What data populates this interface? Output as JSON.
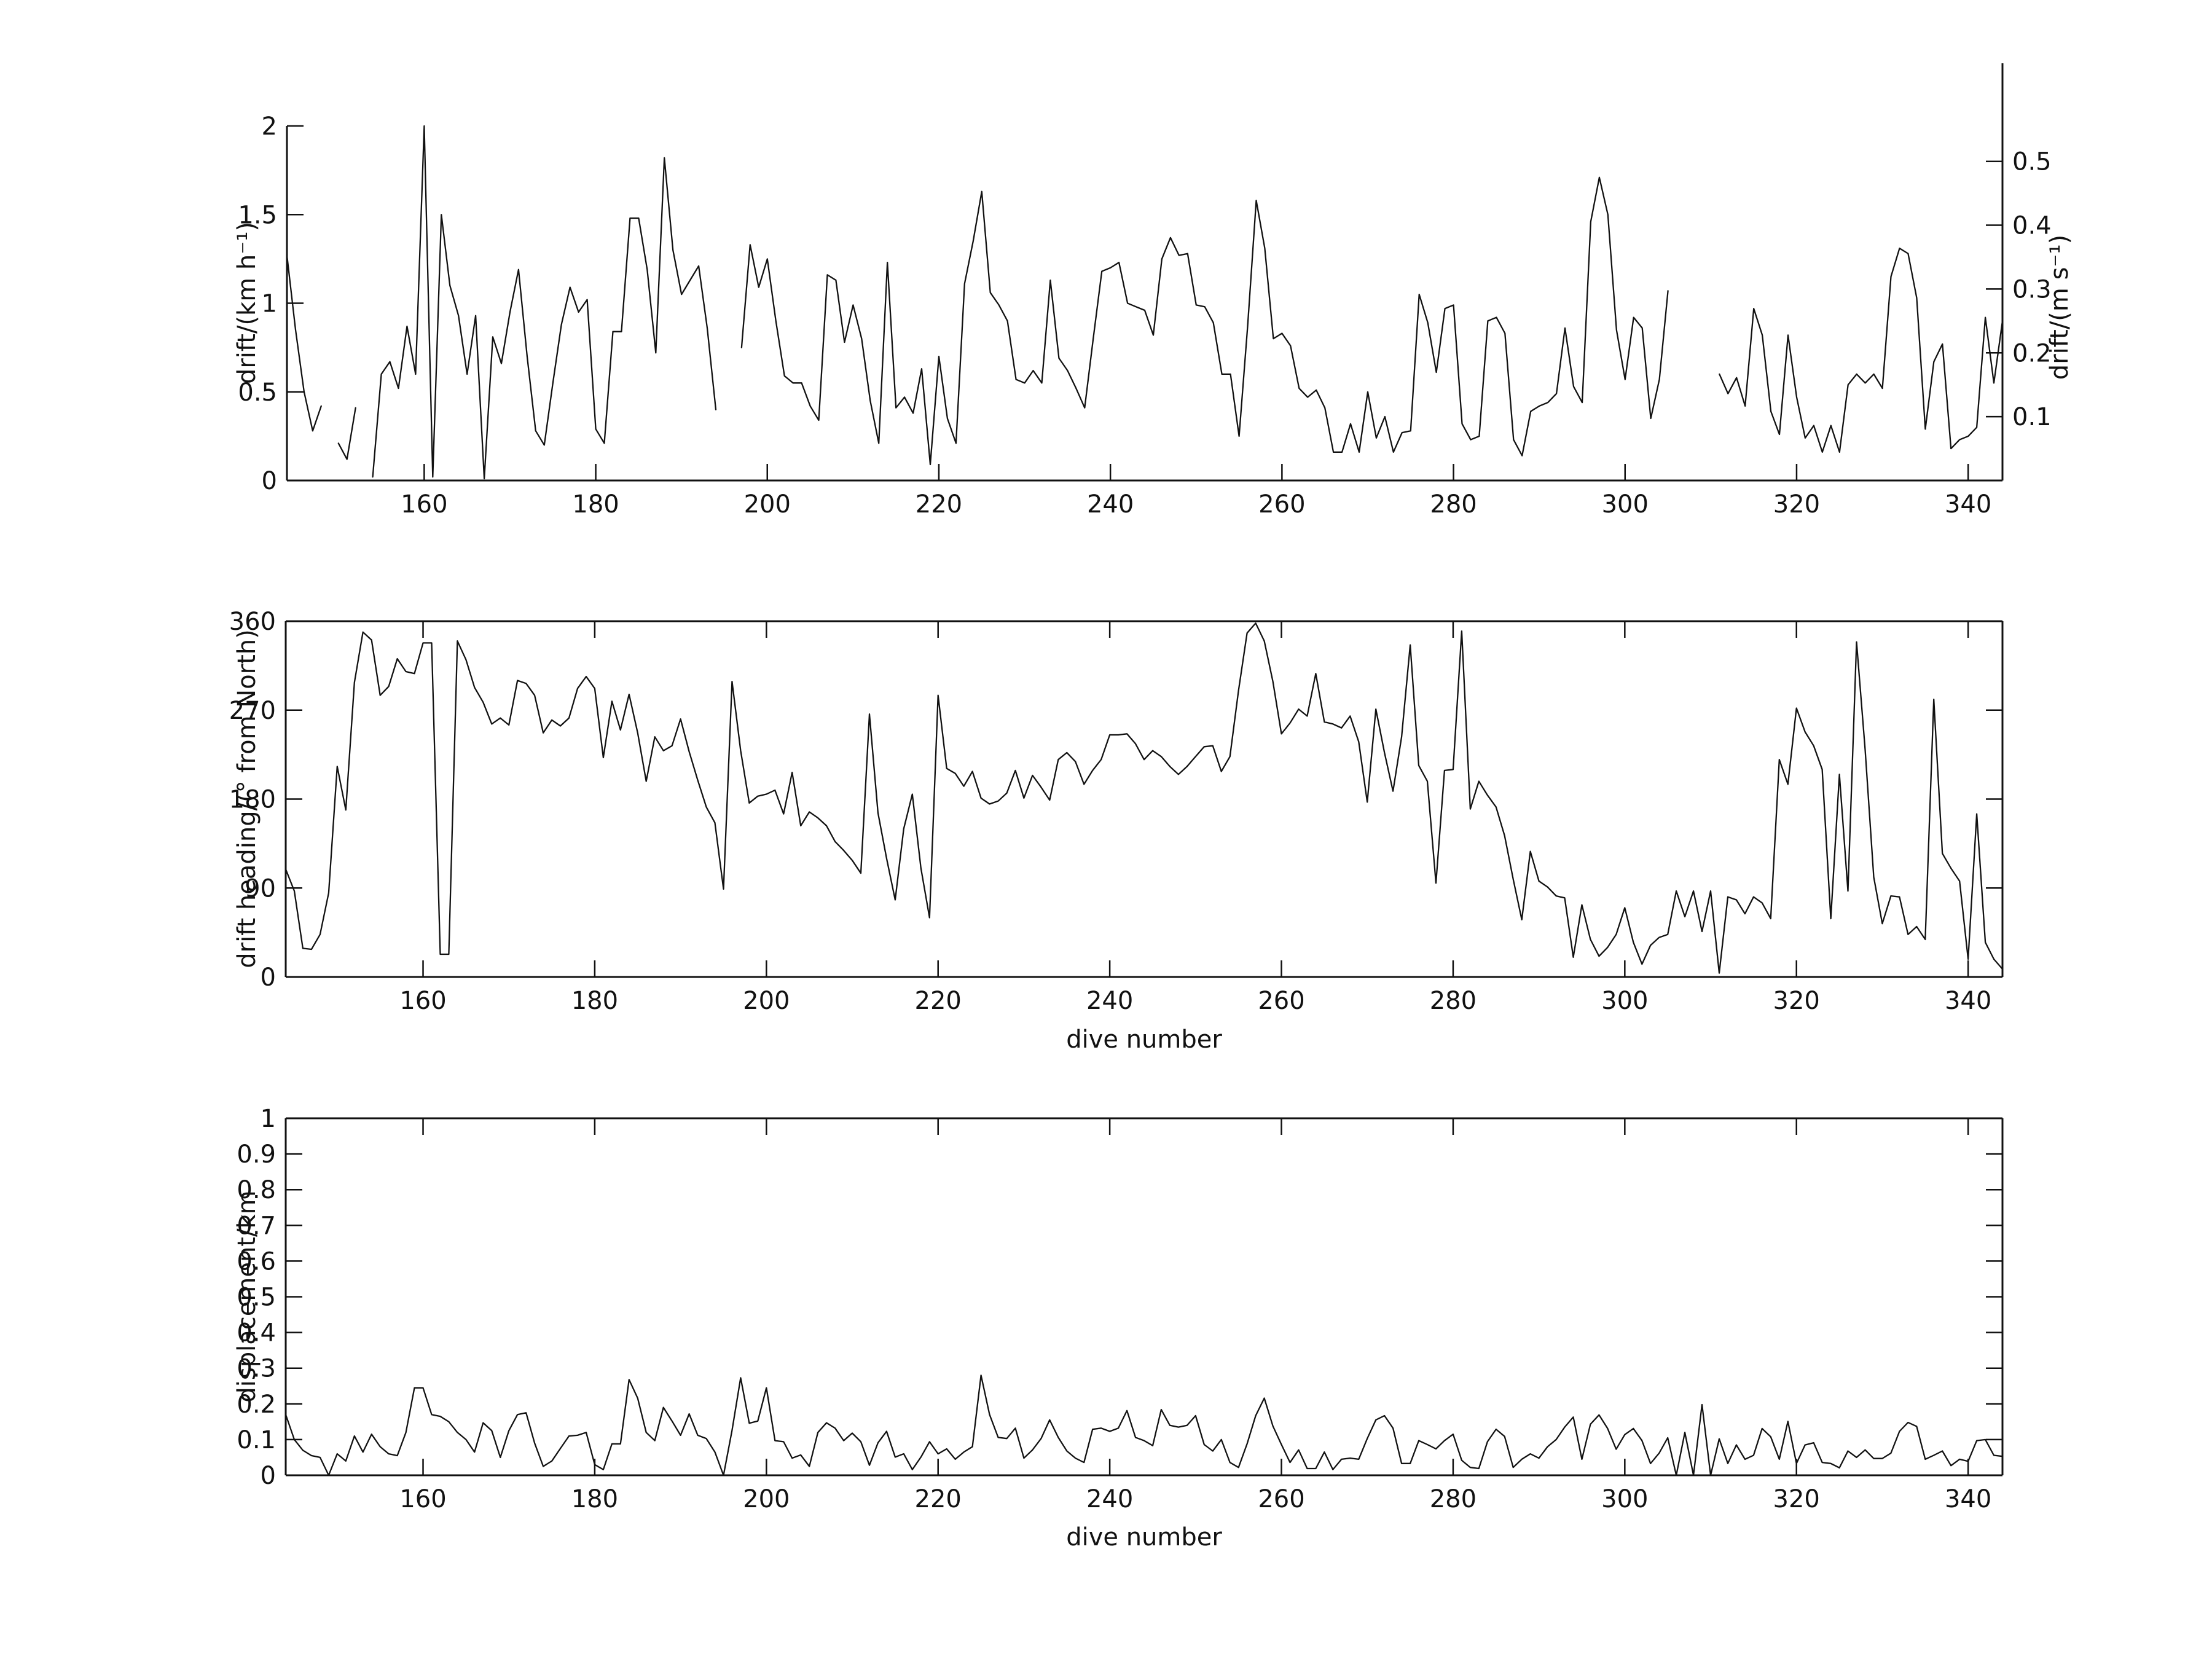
{
  "figure": {
    "background": "#ffffff",
    "line_color": "#111111",
    "text_color": "#111111"
  },
  "dive_numbers": [
    144,
    145,
    146,
    147,
    148,
    149,
    150,
    151,
    152,
    153,
    154,
    155,
    156,
    157,
    158,
    159,
    160,
    161,
    162,
    163,
    164,
    165,
    166,
    167,
    168,
    169,
    170,
    171,
    172,
    173,
    174,
    175,
    176,
    177,
    178,
    179,
    180,
    181,
    182,
    183,
    184,
    185,
    186,
    187,
    188,
    189,
    190,
    191,
    192,
    193,
    194,
    195,
    196,
    197,
    198,
    199,
    200,
    201,
    202,
    203,
    204,
    205,
    206,
    207,
    208,
    209,
    210,
    211,
    212,
    213,
    214,
    215,
    216,
    217,
    218,
    219,
    220,
    221,
    222,
    223,
    224,
    225,
    226,
    227,
    228,
    229,
    230,
    231,
    232,
    233,
    234,
    235,
    236,
    237,
    238,
    239,
    240,
    241,
    242,
    243,
    244,
    245,
    246,
    247,
    248,
    249,
    250,
    251,
    252,
    253,
    254,
    255,
    256,
    257,
    258,
    259,
    260,
    261,
    262,
    263,
    264,
    265,
    266,
    267,
    268,
    269,
    270,
    271,
    272,
    273,
    274,
    275,
    276,
    277,
    278,
    279,
    280,
    281,
    282,
    283,
    284,
    285,
    286,
    287,
    288,
    289,
    290,
    291,
    292,
    293,
    294,
    295,
    296,
    297,
    298,
    299,
    300,
    301,
    302,
    303,
    304,
    305,
    306,
    307,
    308,
    309,
    310,
    311,
    312,
    313,
    314,
    315,
    316,
    317,
    318,
    319,
    320,
    321,
    322,
    323,
    324,
    325,
    326,
    327,
    328,
    329,
    330,
    331,
    332,
    333,
    334,
    335,
    336,
    337,
    338,
    339,
    340,
    341,
    342,
    343,
    344
  ],
  "chart_data": [
    {
      "id": "drift",
      "type": "line",
      "title": "",
      "xlabel": "",
      "ylabel_left": "drift/(km h⁻¹)",
      "ylabel_right": "drift/(m s⁻¹)",
      "xlim": [
        144,
        344
      ],
      "ylim": [
        0,
        2
      ],
      "xticks": [
        160,
        180,
        200,
        220,
        240,
        260,
        280,
        300,
        320,
        340
      ],
      "xtick_labels": [
        "160",
        "180",
        "200",
        "220",
        "240",
        "260",
        "280",
        "300",
        "320",
        "340"
      ],
      "yticks": [
        0,
        0.5,
        1,
        1.5,
        2
      ],
      "ytick_labels": [
        "0",
        "0.5",
        "1",
        "1.5",
        "2"
      ],
      "yticks_right_ms": [
        0.1,
        0.2,
        0.3,
        0.4,
        0.5
      ],
      "ytick_labels_right": [
        "0.1",
        "0.2",
        "0.3",
        "0.4",
        "0.5"
      ],
      "grid": false,
      "legend": null,
      "values": [
        1.27,
        0.85,
        0.5,
        0.28,
        0.42,
        null,
        0.21,
        0.12,
        0.41,
        null,
        0.02,
        0.6,
        0.67,
        0.52,
        0.87,
        0.6,
        2.0,
        0.02,
        1.5,
        1.1,
        0.93,
        0.6,
        0.93,
        0.01,
        0.81,
        0.66,
        0.95,
        1.19,
        0.7,
        0.28,
        0.2,
        0.55,
        0.88,
        1.09,
        0.95,
        1.02,
        0.29,
        0.21,
        0.84,
        0.84,
        1.48,
        1.48,
        1.19,
        0.72,
        1.82,
        1.3,
        1.05,
        1.13,
        1.21,
        0.86,
        0.4,
        null,
        null,
        0.75,
        1.33,
        1.09,
        1.25,
        0.9,
        0.59,
        0.55,
        0.55,
        0.42,
        0.34,
        1.16,
        1.13,
        0.78,
        0.99,
        0.8,
        0.45,
        0.21,
        1.23,
        0.41,
        0.47,
        0.38,
        0.63,
        0.09,
        0.7,
        0.35,
        0.21,
        1.11,
        1.35,
        1.63,
        1.06,
        0.99,
        0.9,
        0.57,
        0.55,
        0.62,
        0.55,
        1.13,
        0.69,
        0.62,
        0.52,
        0.41,
        0.8,
        1.18,
        1.2,
        1.23,
        1.0,
        0.98,
        0.96,
        0.82,
        1.25,
        1.37,
        1.27,
        1.28,
        0.99,
        0.98,
        0.89,
        0.6,
        0.6,
        0.25,
        0.87,
        1.58,
        1.31,
        0.8,
        0.83,
        0.76,
        0.52,
        0.47,
        0.51,
        0.41,
        0.16,
        0.16,
        0.32,
        0.16,
        0.5,
        0.24,
        0.36,
        0.16,
        0.27,
        0.28,
        1.05,
        0.89,
        0.61,
        0.97,
        0.99,
        0.32,
        0.23,
        0.25,
        0.9,
        0.92,
        0.83,
        0.23,
        0.14,
        0.39,
        0.42,
        0.44,
        0.49,
        0.86,
        0.53,
        0.44,
        1.46,
        1.71,
        1.5,
        0.85,
        0.57,
        0.92,
        0.86,
        0.35,
        0.57,
        1.07,
        null,
        null,
        null,
        null,
        null,
        0.6,
        0.49,
        0.58,
        0.42,
        0.97,
        0.82,
        0.39,
        0.26,
        0.82,
        0.47,
        0.24,
        0.31,
        0.16,
        0.31,
        0.16,
        0.54,
        0.6,
        0.55,
        0.6,
        0.52,
        1.15,
        1.31,
        1.28,
        1.03,
        0.29,
        0.67,
        0.77,
        0.18,
        0.23,
        0.25,
        0.3,
        0.92,
        0.55,
        0.9
      ]
    },
    {
      "id": "heading",
      "type": "line",
      "title": "",
      "xlabel": "dive number",
      "ylabel": "drift heading/(° from North)",
      "xlim": [
        144,
        344
      ],
      "ylim": [
        0,
        360
      ],
      "xticks": [
        160,
        180,
        200,
        220,
        240,
        260,
        280,
        300,
        320,
        340
      ],
      "xtick_labels": [
        "160",
        "180",
        "200",
        "220",
        "240",
        "260",
        "280",
        "300",
        "320",
        "340"
      ],
      "yticks": [
        0,
        90,
        180,
        270,
        360
      ],
      "ytick_labels": [
        "0",
        "90",
        "180",
        "270",
        "360"
      ],
      "grid": false,
      "legend": null,
      "values": [
        109,
        87,
        29,
        28,
        43,
        85,
        213,
        169,
        298,
        349,
        341,
        285,
        294,
        322,
        309,
        307,
        338,
        338,
        23,
        23,
        340,
        321,
        293,
        278,
        256,
        262,
        255,
        300,
        297,
        285,
        247,
        260,
        254,
        262,
        292,
        304,
        292,
        222,
        279,
        250,
        286,
        247,
        198,
        243,
        229,
        234,
        261,
        228,
        199,
        172,
        156,
        89,
        299,
        229,
        176,
        183,
        185,
        189,
        165,
        207,
        153,
        167,
        161,
        153,
        137,
        128,
        118,
        105,
        266,
        166,
        120,
        78,
        150,
        185,
        110,
        60,
        285,
        211,
        206,
        193,
        208,
        181,
        175,
        178,
        186,
        209,
        181,
        204,
        192,
        179,
        220,
        227,
        218,
        195,
        209,
        220,
        245,
        245,
        246,
        236,
        220,
        229,
        223,
        213,
        205,
        213,
        223,
        233,
        234,
        208,
        223,
        290,
        348,
        358,
        340,
        299,
        246,
        257,
        271,
        264,
        307,
        258,
        256,
        252,
        264,
        238,
        177,
        271,
        227,
        188,
        243,
        336,
        214,
        198,
        95,
        209,
        210,
        350,
        170,
        198,
        184,
        172,
        143,
        99,
        58,
        127,
        97,
        91,
        82,
        80,
        20,
        73,
        38,
        21,
        30,
        43,
        70,
        35,
        13,
        32,
        40,
        43,
        87,
        61,
        87,
        46,
        87,
        4,
        81,
        78,
        64,
        81,
        75,
        59,
        220,
        195,
        272,
        248,
        234,
        210,
        59,
        205,
        87,
        339,
        230,
        101,
        54,
        82,
        81,
        43,
        51,
        38,
        281,
        125,
        110,
        97,
        18,
        165,
        35,
        18,
        8
      ]
    },
    {
      "id": "displacement",
      "type": "line",
      "title": "",
      "xlabel": "dive number",
      "ylabel": "displacement/km",
      "xlim": [
        144,
        344
      ],
      "ylim": [
        0,
        1
      ],
      "xticks": [
        160,
        180,
        200,
        220,
        240,
        260,
        280,
        300,
        320,
        340
      ],
      "xtick_labels": [
        "160",
        "180",
        "200",
        "220",
        "240",
        "260",
        "280",
        "300",
        "320",
        "340"
      ],
      "yticks": [
        0,
        0.1,
        0.2,
        0.3,
        0.4,
        0.5,
        0.6,
        0.7,
        0.8,
        0.9,
        1
      ],
      "ytick_labels": [
        "0",
        "0.1",
        "0.2",
        "0.3",
        "0.4",
        "0.5",
        "0.6",
        "0.7",
        "0.8",
        "0.9",
        "1"
      ],
      "grid": false,
      "legend": null,
      "values": [
        0.17,
        0.1,
        0.07,
        0.055,
        0.05,
        0.0,
        0.06,
        0.04,
        0.11,
        0.065,
        0.115,
        0.08,
        0.06,
        0.055,
        0.12,
        0.245,
        0.245,
        0.17,
        0.165,
        0.15,
        0.12,
        0.1,
        0.065,
        0.147,
        0.125,
        0.05,
        0.125,
        0.17,
        0.175,
        0.09,
        0.025,
        0.04,
        0.075,
        0.11,
        0.112,
        0.12,
        0.03,
        0.016,
        0.088,
        0.088,
        0.268,
        0.216,
        0.12,
        0.097,
        0.19,
        0.152,
        0.112,
        0.172,
        0.112,
        0.103,
        0.065,
        0.0,
        0.126,
        0.273,
        0.146,
        0.152,
        0.245,
        0.097,
        0.094,
        0.048,
        0.057,
        0.025,
        0.12,
        0.147,
        0.132,
        0.097,
        0.118,
        0.094,
        0.028,
        0.091,
        0.123,
        0.051,
        0.06,
        0.016,
        0.051,
        0.094,
        0.06,
        0.074,
        0.045,
        0.065,
        0.08,
        0.28,
        0.17,
        0.106,
        0.103,
        0.132,
        0.048,
        0.071,
        0.103,
        0.155,
        0.106,
        0.068,
        0.048,
        0.036,
        0.129,
        0.132,
        0.123,
        0.132,
        0.181,
        0.106,
        0.097,
        0.083,
        0.184,
        0.14,
        0.135,
        0.14,
        0.167,
        0.086,
        0.068,
        0.1,
        0.036,
        0.022,
        0.088,
        0.167,
        0.216,
        0.138,
        0.086,
        0.036,
        0.071,
        0.019,
        0.019,
        0.065,
        0.016,
        0.045,
        0.048,
        0.045,
        0.103,
        0.155,
        0.167,
        0.132,
        0.033,
        0.033,
        0.097,
        0.086,
        0.074,
        0.097,
        0.115,
        0.042,
        0.022,
        0.019,
        0.094,
        0.129,
        0.109,
        0.022,
        0.045,
        0.06,
        0.048,
        0.08,
        0.1,
        0.135,
        0.163,
        0.045,
        0.143,
        0.169,
        0.131,
        0.073,
        0.114,
        0.131,
        0.097,
        0.033,
        0.062,
        0.105,
        0.0,
        0.12,
        0.0,
        0.198,
        0.0,
        0.102,
        0.033,
        0.085,
        0.045,
        0.056,
        0.131,
        0.108,
        0.045,
        0.151,
        0.033,
        0.085,
        0.091,
        0.036,
        0.033,
        0.021,
        0.068,
        0.05,
        0.071,
        0.047,
        0.047,
        0.062,
        0.123,
        0.148,
        0.137,
        0.045,
        0.056,
        0.068,
        0.027,
        0.045,
        0.039,
        0.097,
        0.1,
        0.056,
        0.053
      ]
    }
  ]
}
